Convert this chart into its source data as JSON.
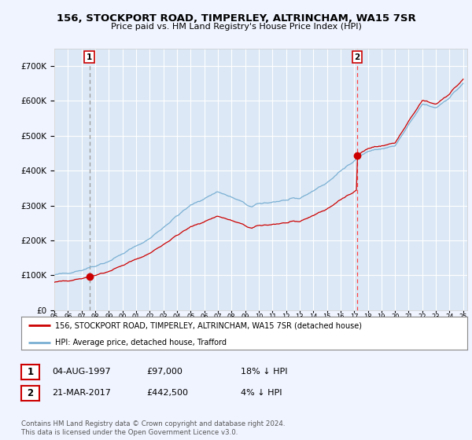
{
  "title": "156, STOCKPORT ROAD, TIMPERLEY, ALTRINCHAM, WA15 7SR",
  "subtitle": "Price paid vs. HM Land Registry's House Price Index (HPI)",
  "legend_line1": "156, STOCKPORT ROAD, TIMPERLEY, ALTRINCHAM, WA15 7SR (detached house)",
  "legend_line2": "HPI: Average price, detached house, Trafford",
  "annotation1_date": "04-AUG-1997",
  "annotation1_price": "£97,000",
  "annotation1_hpi": "18% ↓ HPI",
  "annotation2_date": "21-MAR-2017",
  "annotation2_price": "£442,500",
  "annotation2_hpi": "4% ↓ HPI",
  "footer": "Contains HM Land Registry data © Crown copyright and database right 2024.\nThis data is licensed under the Open Government Licence v3.0.",
  "sale1_year": 1997.58,
  "sale1_price": 97000,
  "sale2_year": 2017.22,
  "sale2_price": 442500,
  "hpi_color": "#7ab0d4",
  "price_color": "#cc0000",
  "vline1_color": "#999999",
  "vline2_color": "#ff4444",
  "background_color": "#f0f4ff",
  "plot_bg_color": "#dce8f5",
  "ylim": [
    0,
    750000
  ],
  "xlim_start": 1995.0,
  "xlim_end": 2025.3
}
